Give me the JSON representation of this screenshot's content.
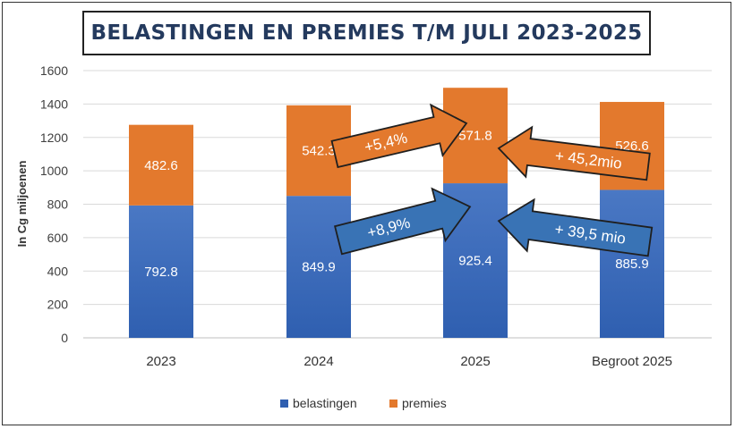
{
  "title": "BELASTINGEN EN PREMIES T/M JULI 2023-2025",
  "colors": {
    "belastingen": "#2f5fb0",
    "premies": "#e3792d",
    "arrow_orange": "#e3792d",
    "arrow_blue": "#3973b5"
  },
  "chart_data": {
    "type": "bar",
    "stacked": true,
    "title": "BELASTINGEN EN PREMIES T/M JULI 2023-2025",
    "xlabel": "",
    "ylabel": "In Cg miljoenen",
    "ylim": [
      0,
      1600
    ],
    "yticks": [
      0,
      200,
      400,
      600,
      800,
      1000,
      1200,
      1400,
      1600
    ],
    "grid": true,
    "legend_position": "bottom",
    "categories": [
      "2023",
      "2024",
      "2025",
      "Begroot 2025"
    ],
    "series": [
      {
        "name": "belastingen",
        "values": [
          792.8,
          849.9,
          925.4,
          885.9
        ],
        "labels": [
          "792.8",
          "849.9",
          "925.4",
          "885.9"
        ]
      },
      {
        "name": "premies",
        "values": [
          482.6,
          542.3,
          571.8,
          526.6
        ],
        "labels": [
          "482.6",
          "542.3",
          "571.8",
          "526.6"
        ]
      }
    ],
    "annotations": [
      {
        "text": "+5,4%",
        "from": "2024",
        "to": "2025",
        "series": "premies"
      },
      {
        "text": "+8,9%",
        "from": "2024",
        "to": "2025",
        "series": "belastingen"
      },
      {
        "text": "+ 45,2mio",
        "from": "Begroot 2025",
        "to": "2025",
        "series": "premies"
      },
      {
        "text": "+ 39,5 mio",
        "from": "Begroot 2025",
        "to": "2025",
        "series": "belastingen"
      }
    ]
  }
}
